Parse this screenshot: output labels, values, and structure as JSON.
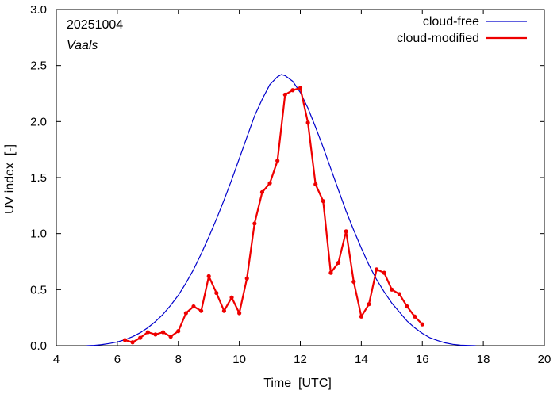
{
  "chart_data": {
    "type": "line",
    "title": "",
    "xlabel": "Time  [UTC]",
    "ylabel": "UV index  [-]",
    "xlim": [
      4,
      20
    ],
    "ylim": [
      0,
      3
    ],
    "xticks": [
      4,
      6,
      8,
      10,
      12,
      14,
      16,
      18,
      20
    ],
    "xtick_labels": [
      "4",
      "6",
      "8",
      "10",
      "12",
      "14",
      "16",
      "18",
      "20"
    ],
    "yticks": [
      0,
      0.5,
      1,
      1.5,
      2,
      2.5,
      3
    ],
    "ytick_labels": [
      "0.0",
      "0.5",
      "1.0",
      "1.5",
      "2.0",
      "2.5",
      "3.0"
    ],
    "grid": false,
    "legend_position": "top-right",
    "annotations": {
      "date": "20251004",
      "location": "Vaals"
    },
    "series": [
      {
        "name": "cloud-free",
        "color": "#0000cc",
        "markers": false,
        "x": [
          5.0,
          5.25,
          5.5,
          5.75,
          6.0,
          6.25,
          6.5,
          6.75,
          7.0,
          7.25,
          7.5,
          7.75,
          8.0,
          8.25,
          8.5,
          8.75,
          9.0,
          9.25,
          9.5,
          9.75,
          10.0,
          10.25,
          10.5,
          10.75,
          11.0,
          11.25,
          11.38,
          11.5,
          11.75,
          12.0,
          12.25,
          12.5,
          12.75,
          13.0,
          13.25,
          13.5,
          13.75,
          14.0,
          14.25,
          14.5,
          14.75,
          15.0,
          15.25,
          15.5,
          15.75,
          16.0,
          16.25,
          16.5,
          16.75,
          17.0,
          17.25,
          17.5,
          17.75
        ],
        "y": [
          0.0,
          0.003,
          0.01,
          0.02,
          0.033,
          0.053,
          0.08,
          0.115,
          0.16,
          0.215,
          0.28,
          0.36,
          0.45,
          0.56,
          0.68,
          0.82,
          0.97,
          1.13,
          1.3,
          1.48,
          1.67,
          1.86,
          2.05,
          2.2,
          2.33,
          2.4,
          2.42,
          2.41,
          2.36,
          2.26,
          2.12,
          1.95,
          1.77,
          1.58,
          1.39,
          1.2,
          1.03,
          0.87,
          0.72,
          0.59,
          0.48,
          0.38,
          0.3,
          0.22,
          0.16,
          0.11,
          0.07,
          0.045,
          0.025,
          0.012,
          0.005,
          0.002,
          0.0
        ]
      },
      {
        "name": "cloud-modified",
        "color": "#ee0000",
        "markers": true,
        "x": [
          6.25,
          6.5,
          6.75,
          7.0,
          7.25,
          7.5,
          7.75,
          8.0,
          8.25,
          8.5,
          8.75,
          9.0,
          9.25,
          9.5,
          9.75,
          10.0,
          10.25,
          10.5,
          10.75,
          11.0,
          11.25,
          11.5,
          11.75,
          12.0,
          12.25,
          12.5,
          12.75,
          13.0,
          13.25,
          13.5,
          13.75,
          14.0,
          14.25,
          14.5,
          14.75,
          15.0,
          15.25,
          15.5,
          15.75,
          16.0
        ],
        "y": [
          0.05,
          0.03,
          0.07,
          0.12,
          0.1,
          0.12,
          0.08,
          0.13,
          0.29,
          0.35,
          0.31,
          0.62,
          0.47,
          0.31,
          0.43,
          0.29,
          0.6,
          1.09,
          1.37,
          1.45,
          1.65,
          2.24,
          2.28,
          2.3,
          1.99,
          1.44,
          1.29,
          0.65,
          0.74,
          1.02,
          0.57,
          0.26,
          0.37,
          0.68,
          0.65,
          0.5,
          0.46,
          0.35,
          0.26,
          0.19
        ]
      }
    ]
  }
}
